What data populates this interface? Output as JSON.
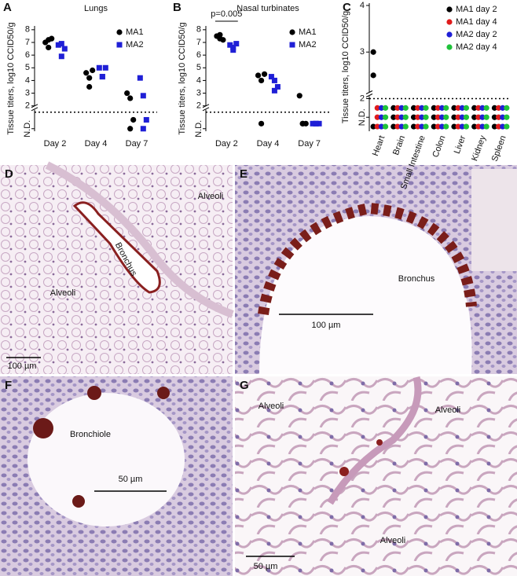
{
  "chart_data": [
    {
      "type": "strip",
      "panel": "A",
      "title": "Lungs",
      "y_label": "Tissue titers, log10 CCID50/g",
      "categories": [
        "Day 2",
        "Day 4",
        "Day 7"
      ],
      "series": [
        {
          "name": "MA1",
          "color": "#000000",
          "marker": "circle",
          "values": [
            [
              7.0,
              7.2,
              7.3,
              6.6
            ],
            [
              4.6,
              4.2,
              4.8,
              3.5
            ],
            [
              3.0,
              2.6,
              0.9,
              0.2
            ]
          ]
        },
        {
          "name": "MA2",
          "color": "#1f1fd6",
          "marker": "square",
          "values": [
            [
              6.8,
              6.9,
              6.5,
              5.9
            ],
            [
              5.0,
              4.3,
              5.0,
              4.3
            ],
            [
              4.2,
              2.8,
              0.9,
              0.2
            ]
          ]
        }
      ],
      "ylim": [
        0,
        8.3
      ],
      "yticks": [
        {
          "value": 0.2,
          "label": "N.D."
        },
        2,
        3,
        4,
        5,
        6,
        7,
        8
      ],
      "reference_line": 1.5,
      "legend": "upper right"
    },
    {
      "type": "strip",
      "panel": "B",
      "title": "Nasal turbinates",
      "y_label": "Tissue titers, log10 CCID50/g",
      "annotation": "p=0.005",
      "categories": [
        "Day 2",
        "Day 4",
        "Day 7"
      ],
      "series": [
        {
          "name": "MA1",
          "color": "#000000",
          "marker": "circle",
          "values": [
            [
              7.5,
              7.6,
              7.2,
              7.3
            ],
            [
              4.4,
              4.0,
              4.5,
              0.6
            ],
            [
              2.8,
              0.6,
              0.6,
              0.6
            ]
          ]
        },
        {
          "name": "MA2",
          "color": "#1f1fd6",
          "marker": "square",
          "values": [
            [
              6.8,
              6.6,
              6.9,
              6.4
            ],
            [
              4.3,
              4.0,
              3.5,
              3.2
            ],
            [
              0.6,
              0.6,
              0.6,
              0.6
            ]
          ]
        }
      ],
      "ylim": [
        0,
        8.3
      ],
      "yticks": [
        {
          "value": 0.2,
          "label": "N.D."
        },
        2,
        3,
        4,
        5,
        6,
        7,
        8
      ],
      "reference_line": 1.5,
      "legend": "upper right"
    },
    {
      "type": "strip",
      "panel": "C",
      "y_label": "Tissue titers, log10 CCID50/g",
      "categories": [
        "Heart",
        "Brain",
        "Small Intestine",
        "Colon",
        "Liver",
        "Kidney",
        "Spleen"
      ],
      "series": [
        {
          "name": "MA1 day 2",
          "color": "#000000",
          "marker": "circle",
          "values": [
            [
              3.0,
              2.5,
              1.4
            ],
            [
              1.8,
              1.6,
              1.4
            ],
            [
              1.8,
              1.6,
              1.4
            ],
            [
              1.8,
              1.6,
              1.4
            ],
            [
              1.8,
              1.6,
              1.4
            ],
            [
              1.8,
              1.6,
              1.4
            ],
            [
              1.8,
              1.6,
              1.4
            ]
          ]
        },
        {
          "name": "MA1 day 4",
          "color": "#e01b1b",
          "marker": "circle",
          "values": [
            [
              1.8,
              1.6,
              1.4
            ],
            [
              1.8,
              1.6,
              1.4
            ],
            [
              1.8,
              1.6,
              1.4
            ],
            [
              1.8,
              1.6,
              1.4
            ],
            [
              1.8,
              1.6,
              1.4
            ],
            [
              1.8,
              1.6,
              1.4
            ],
            [
              1.8,
              1.6,
              1.4
            ]
          ]
        },
        {
          "name": "MA2 day 2",
          "color": "#1f1fd6",
          "marker": "circle",
          "values": [
            [
              1.8,
              1.6,
              1.4
            ],
            [
              1.8,
              1.6,
              1.4
            ],
            [
              1.8,
              1.6,
              1.4
            ],
            [
              1.8,
              1.6,
              1.4
            ],
            [
              1.8,
              1.6,
              1.4
            ],
            [
              1.8,
              1.6,
              1.4
            ],
            [
              1.8,
              1.6,
              1.4
            ]
          ]
        },
        {
          "name": "MA2 day 4",
          "color": "#1fc23a",
          "marker": "circle",
          "values": [
            [
              1.8,
              1.6,
              1.4
            ],
            [
              1.8,
              1.6,
              1.4
            ],
            [
              1.8,
              1.6,
              1.4
            ],
            [
              1.8,
              1.6,
              1.4
            ],
            [
              1.8,
              1.6,
              1.4
            ],
            [
              1.8,
              1.6,
              1.4
            ],
            [
              1.8,
              1.6,
              1.4
            ]
          ]
        }
      ],
      "ylim": [
        1.3,
        4.05
      ],
      "yticks": [
        {
          "value": 1.6,
          "label": "N.D."
        },
        2,
        3,
        4
      ],
      "reference_line": 2,
      "legend": "upper right"
    }
  ],
  "images": [
    {
      "panel": "D",
      "labels": [
        "Alveoli",
        "Bronchus",
        "Alveoli"
      ],
      "scale_bar": "100 µm"
    },
    {
      "panel": "E",
      "labels": [
        "Bronchus"
      ],
      "scale_bar": "100 µm"
    },
    {
      "panel": "F",
      "labels": [
        "Bronchiole"
      ],
      "scale_bar": "50 µm"
    },
    {
      "panel": "G",
      "labels": [
        "Alveoli",
        "Alveoli",
        "Alveoli"
      ],
      "scale_bar": "50 µm"
    }
  ]
}
